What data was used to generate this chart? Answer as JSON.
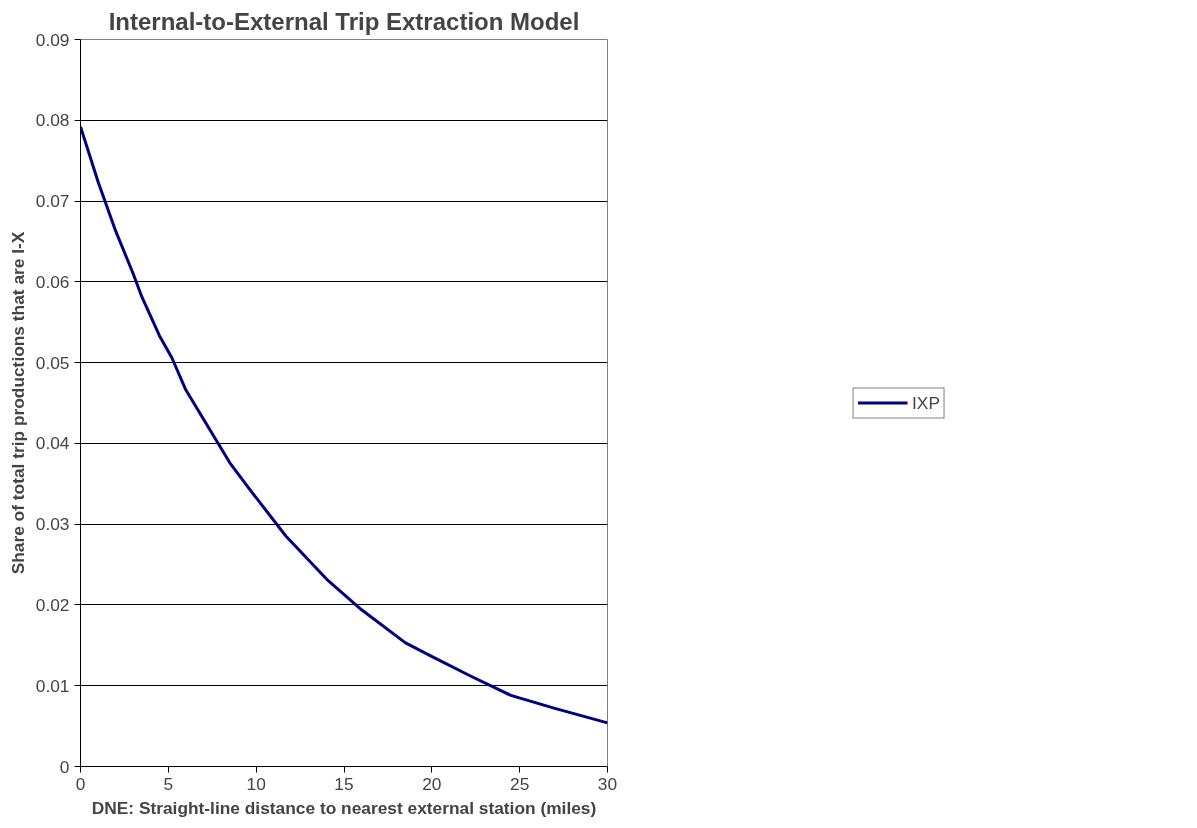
{
  "chart_data": {
    "type": "line",
    "title": "Internal-to-External Trip Extraction Model",
    "xlabel": "DNE: Straight-line distance to nearest external station (miles)",
    "ylabel": "Share of total trip productions that are I-X",
    "series": [
      {
        "name": "IXP",
        "color": "#000080",
        "x": [
          0,
          1,
          2,
          3,
          3.5,
          4.5,
          5.2,
          6,
          8.5,
          9.6,
          11.7,
          14.1,
          16,
          18.5,
          20.1,
          22.2,
          24.5,
          27,
          30
        ],
        "values": [
          0.0792,
          0.0724,
          0.0663,
          0.061,
          0.0581,
          0.0533,
          0.0506,
          0.0466,
          0.0376,
          0.0344,
          0.0285,
          0.023,
          0.0194,
          0.0153,
          0.0135,
          0.0112,
          0.0088,
          0.0072,
          0.0054
        ]
      }
    ],
    "xlim": [
      0,
      30
    ],
    "xticks": [
      0,
      5,
      10,
      15,
      20,
      25,
      30
    ],
    "ylim": [
      0,
      0.09
    ],
    "yticks": [
      0,
      0.01,
      0.02,
      0.03,
      0.04,
      0.05,
      0.06,
      0.07,
      0.08,
      0.09
    ],
    "grid": "y",
    "legend": "right",
    "marker": "none",
    "line_style": "solid"
  }
}
